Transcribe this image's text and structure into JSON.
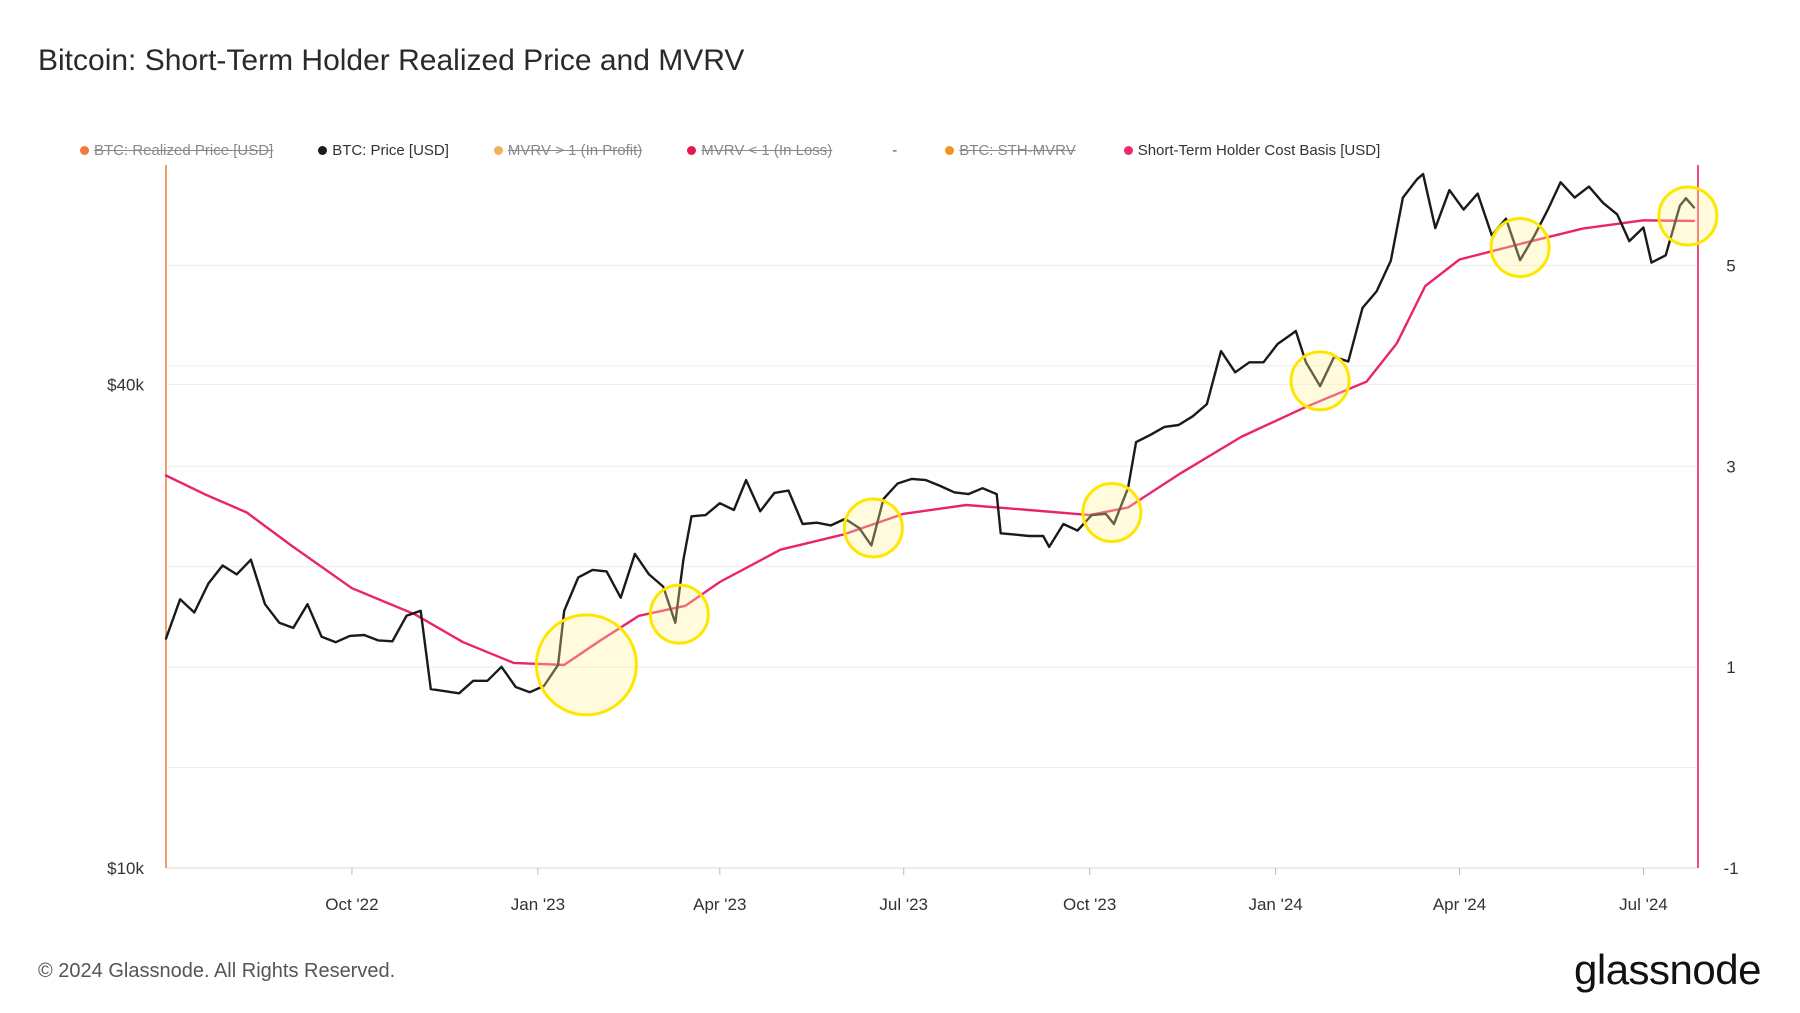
{
  "title": "Bitcoin: Short-Term Holder Realized Price and MVRV",
  "legend": [
    {
      "label": "BTC: Realized Price [USD]",
      "color": "#f07a3a",
      "active": false
    },
    {
      "label": "BTC: Price [USD]",
      "color": "#1a1a1a",
      "active": true
    },
    {
      "label": "MVRV > 1 (In Profit)",
      "color": "#f0b25a",
      "active": false
    },
    {
      "label": "MVRV < 1 (In Loss)",
      "color": "#e8174e",
      "active": false
    },
    {
      "label": "-",
      "color": "",
      "active": true
    },
    {
      "label": "BTC: STH-MVRV",
      "color": "#ef9321",
      "active": false
    },
    {
      "label": "Short-Term Holder Cost Basis [USD]",
      "color": "#ef2a72",
      "active": true
    }
  ],
  "footer": {
    "copyright": "© 2024 Glassnode. All Rights Reserved.",
    "brand": "glassnode"
  },
  "colors": {
    "price": "#1a1a1a",
    "sth": "#ea2370",
    "left_axis": "#f07a3a",
    "right_axis": "#e8174e",
    "highlight": "#ffe600"
  },
  "chart_data": {
    "type": "line",
    "title": "Bitcoin: Short-Term Holder Realized Price and MVRV",
    "x_range": [
      "2022-07-01",
      "2024-07-28"
    ],
    "x_ticks": [
      {
        "date": "2022-10-01",
        "label": "Oct '22"
      },
      {
        "date": "2023-01-01",
        "label": "Jan '23"
      },
      {
        "date": "2023-04-01",
        "label": "Apr '23"
      },
      {
        "date": "2023-07-01",
        "label": "Jul '23"
      },
      {
        "date": "2023-10-01",
        "label": "Oct '23"
      },
      {
        "date": "2024-01-01",
        "label": "Jan '24"
      },
      {
        "date": "2024-04-01",
        "label": "Apr '24"
      },
      {
        "date": "2024-07-01",
        "label": "Jul '24"
      }
    ],
    "left_axis": {
      "scale": "log",
      "range": [
        10000,
        75000
      ],
      "ticks": [
        {
          "value": 10000,
          "label": "$10k"
        },
        {
          "value": 40000,
          "label": "$40k"
        }
      ]
    },
    "right_axis": {
      "scale": "linear",
      "range": [
        -1,
        6
      ],
      "ticks": [
        {
          "value": -1,
          "label": "-1"
        },
        {
          "value": 1,
          "label": "1"
        },
        {
          "value": 3,
          "label": "3"
        },
        {
          "value": 5,
          "label": "5"
        }
      ]
    },
    "grid": true,
    "legend_position": "top",
    "series": [
      {
        "name": "BTC: Price [USD]",
        "axis": "left",
        "points": [
          [
            "2022-07-01",
            19300
          ],
          [
            "2022-07-08",
            21600
          ],
          [
            "2022-07-15",
            20800
          ],
          [
            "2022-07-22",
            22600
          ],
          [
            "2022-07-29",
            23800
          ],
          [
            "2022-08-05",
            23200
          ],
          [
            "2022-08-12",
            24200
          ],
          [
            "2022-08-19",
            21300
          ],
          [
            "2022-08-26",
            20200
          ],
          [
            "2022-09-02",
            19900
          ],
          [
            "2022-09-09",
            21300
          ],
          [
            "2022-09-16",
            19400
          ],
          [
            "2022-09-23",
            19100
          ],
          [
            "2022-09-30",
            19450
          ],
          [
            "2022-10-07",
            19500
          ],
          [
            "2022-10-14",
            19200
          ],
          [
            "2022-10-21",
            19150
          ],
          [
            "2022-10-28",
            20600
          ],
          [
            "2022-11-04",
            20900
          ],
          [
            "2022-11-09",
            16700
          ],
          [
            "2022-11-16",
            16600
          ],
          [
            "2022-11-23",
            16500
          ],
          [
            "2022-11-30",
            17100
          ],
          [
            "2022-12-07",
            17100
          ],
          [
            "2022-12-14",
            17800
          ],
          [
            "2022-12-21",
            16800
          ],
          [
            "2022-12-28",
            16550
          ],
          [
            "2023-01-04",
            16850
          ],
          [
            "2023-01-11",
            17900
          ],
          [
            "2023-01-14",
            20900
          ],
          [
            "2023-01-21",
            23000
          ],
          [
            "2023-01-28",
            23500
          ],
          [
            "2023-02-04",
            23400
          ],
          [
            "2023-02-11",
            21700
          ],
          [
            "2023-02-18",
            24600
          ],
          [
            "2023-02-25",
            23200
          ],
          [
            "2023-03-04",
            22400
          ],
          [
            "2023-03-10",
            20200
          ],
          [
            "2023-03-14",
            24200
          ],
          [
            "2023-03-18",
            27400
          ],
          [
            "2023-03-25",
            27500
          ],
          [
            "2023-04-01",
            28450
          ],
          [
            "2023-04-08",
            27900
          ],
          [
            "2023-04-14",
            30400
          ],
          [
            "2023-04-21",
            27800
          ],
          [
            "2023-04-28",
            29300
          ],
          [
            "2023-05-05",
            29500
          ],
          [
            "2023-05-12",
            26800
          ],
          [
            "2023-05-19",
            26900
          ],
          [
            "2023-05-26",
            26700
          ],
          [
            "2023-06-02",
            27200
          ],
          [
            "2023-06-09",
            26500
          ],
          [
            "2023-06-15",
            25200
          ],
          [
            "2023-06-21",
            28800
          ],
          [
            "2023-06-28",
            30100
          ],
          [
            "2023-07-05",
            30500
          ],
          [
            "2023-07-12",
            30400
          ],
          [
            "2023-07-19",
            29900
          ],
          [
            "2023-07-26",
            29350
          ],
          [
            "2023-08-02",
            29200
          ],
          [
            "2023-08-09",
            29700
          ],
          [
            "2023-08-16",
            29200
          ],
          [
            "2023-08-18",
            26100
          ],
          [
            "2023-08-25",
            26000
          ],
          [
            "2023-09-01",
            25900
          ],
          [
            "2023-09-08",
            25900
          ],
          [
            "2023-09-11",
            25100
          ],
          [
            "2023-09-18",
            26800
          ],
          [
            "2023-09-25",
            26300
          ],
          [
            "2023-10-02",
            27500
          ],
          [
            "2023-10-09",
            27600
          ],
          [
            "2023-10-13",
            26800
          ],
          [
            "2023-10-20",
            29700
          ],
          [
            "2023-10-24",
            33900
          ],
          [
            "2023-10-31",
            34600
          ],
          [
            "2023-11-07",
            35400
          ],
          [
            "2023-11-14",
            35600
          ],
          [
            "2023-11-21",
            36500
          ],
          [
            "2023-11-28",
            37800
          ],
          [
            "2023-12-05",
            44000
          ],
          [
            "2023-12-12",
            41400
          ],
          [
            "2023-12-19",
            42600
          ],
          [
            "2023-12-26",
            42600
          ],
          [
            "2024-01-02",
            44900
          ],
          [
            "2024-01-09",
            46200
          ],
          [
            "2024-01-11",
            46600
          ],
          [
            "2024-01-16",
            42600
          ],
          [
            "2024-01-23",
            39800
          ],
          [
            "2024-01-30",
            43300
          ],
          [
            "2024-02-06",
            42700
          ],
          [
            "2024-02-13",
            49800
          ],
          [
            "2024-02-20",
            52200
          ],
          [
            "2024-02-27",
            57000
          ],
          [
            "2024-03-04",
            68300
          ],
          [
            "2024-03-11",
            72000
          ],
          [
            "2024-03-14",
            73100
          ],
          [
            "2024-03-20",
            62600
          ],
          [
            "2024-03-27",
            69800
          ],
          [
            "2024-04-03",
            66000
          ],
          [
            "2024-04-10",
            69100
          ],
          [
            "2024-04-17",
            61300
          ],
          [
            "2024-04-24",
            64300
          ],
          [
            "2024-05-01",
            57100
          ],
          [
            "2024-05-08",
            61200
          ],
          [
            "2024-05-15",
            66200
          ],
          [
            "2024-05-21",
            71400
          ],
          [
            "2024-05-28",
            68300
          ],
          [
            "2024-06-04",
            70500
          ],
          [
            "2024-06-11",
            67300
          ],
          [
            "2024-06-18",
            65100
          ],
          [
            "2024-06-24",
            60300
          ],
          [
            "2024-07-01",
            62700
          ],
          [
            "2024-07-05",
            56700
          ],
          [
            "2024-07-12",
            57900
          ],
          [
            "2024-07-19",
            66700
          ],
          [
            "2024-07-22",
            68200
          ],
          [
            "2024-07-26",
            66400
          ]
        ]
      },
      {
        "name": "Short-Term Holder Cost Basis [USD]",
        "axis": "left",
        "points": [
          [
            "2022-07-01",
            30800
          ],
          [
            "2022-07-20",
            29200
          ],
          [
            "2022-08-10",
            27700
          ],
          [
            "2022-09-01",
            25200
          ],
          [
            "2022-10-01",
            22300
          ],
          [
            "2022-11-01",
            20700
          ],
          [
            "2022-11-25",
            19100
          ],
          [
            "2022-12-20",
            18000
          ],
          [
            "2023-01-14",
            17900
          ],
          [
            "2023-02-01",
            19200
          ],
          [
            "2023-02-20",
            20600
          ],
          [
            "2023-03-15",
            21200
          ],
          [
            "2023-04-01",
            22700
          ],
          [
            "2023-05-01",
            24900
          ],
          [
            "2023-06-01",
            26000
          ],
          [
            "2023-07-01",
            27600
          ],
          [
            "2023-08-01",
            28300
          ],
          [
            "2023-09-01",
            27900
          ],
          [
            "2023-10-01",
            27500
          ],
          [
            "2023-10-20",
            28100
          ],
          [
            "2023-11-15",
            31000
          ],
          [
            "2023-12-15",
            34400
          ],
          [
            "2024-01-15",
            37400
          ],
          [
            "2024-02-15",
            40300
          ],
          [
            "2024-03-01",
            45000
          ],
          [
            "2024-03-15",
            53000
          ],
          [
            "2024-04-01",
            57200
          ],
          [
            "2024-05-01",
            59800
          ],
          [
            "2024-06-01",
            62500
          ],
          [
            "2024-07-01",
            64000
          ],
          [
            "2024-07-26",
            63900
          ]
        ]
      }
    ],
    "annotations": [
      {
        "type": "circle",
        "date": "2023-01-25",
        "value": 17900,
        "size": "large"
      },
      {
        "type": "circle",
        "date": "2023-03-12",
        "value": 20700,
        "size": "small"
      },
      {
        "type": "circle",
        "date": "2023-06-16",
        "value": 26500,
        "size": "small"
      },
      {
        "type": "circle",
        "date": "2023-10-12",
        "value": 27700,
        "size": "small"
      },
      {
        "type": "circle",
        "date": "2024-01-23",
        "value": 40400,
        "size": "small"
      },
      {
        "type": "circle",
        "date": "2024-05-01",
        "value": 59200,
        "size": "small"
      },
      {
        "type": "circle",
        "date": "2024-07-23",
        "value": 64800,
        "size": "small"
      }
    ]
  }
}
